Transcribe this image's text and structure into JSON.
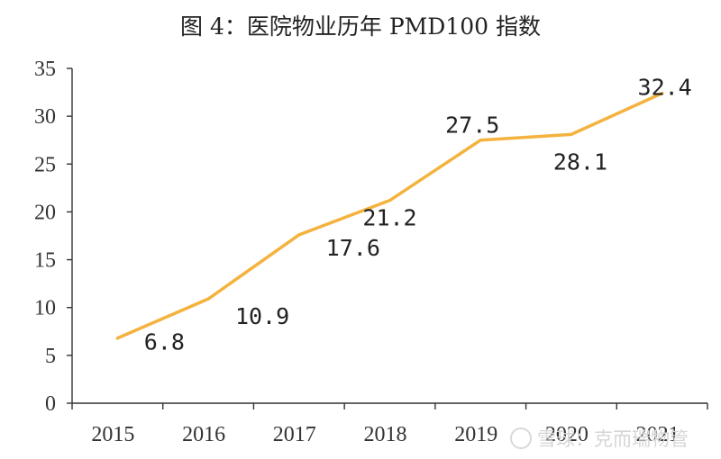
{
  "chart_data": {
    "type": "line",
    "title": "图 4：医院物业历年 PMD100 指数",
    "categories": [
      "2015",
      "2016",
      "2017",
      "2018",
      "2019",
      "2020",
      "2021"
    ],
    "series": [
      {
        "values": [
          6.8,
          10.9,
          17.6,
          21.2,
          27.5,
          28.1,
          32.4
        ]
      }
    ],
    "data_labels": [
      "6.8",
      "10.9",
      "17.6",
      "21.2",
      "27.5",
      "28.1",
      "32.4"
    ],
    "ylim": [
      0,
      35
    ],
    "yticks": [
      0,
      5,
      10,
      15,
      20,
      25,
      30,
      35
    ],
    "xlabel": "",
    "ylabel": "",
    "grid": false,
    "legend": "none",
    "line_color": "#F4B23E",
    "axis_color": "#333333"
  },
  "watermark": {
    "text": "雪球：克而瑞物管"
  }
}
